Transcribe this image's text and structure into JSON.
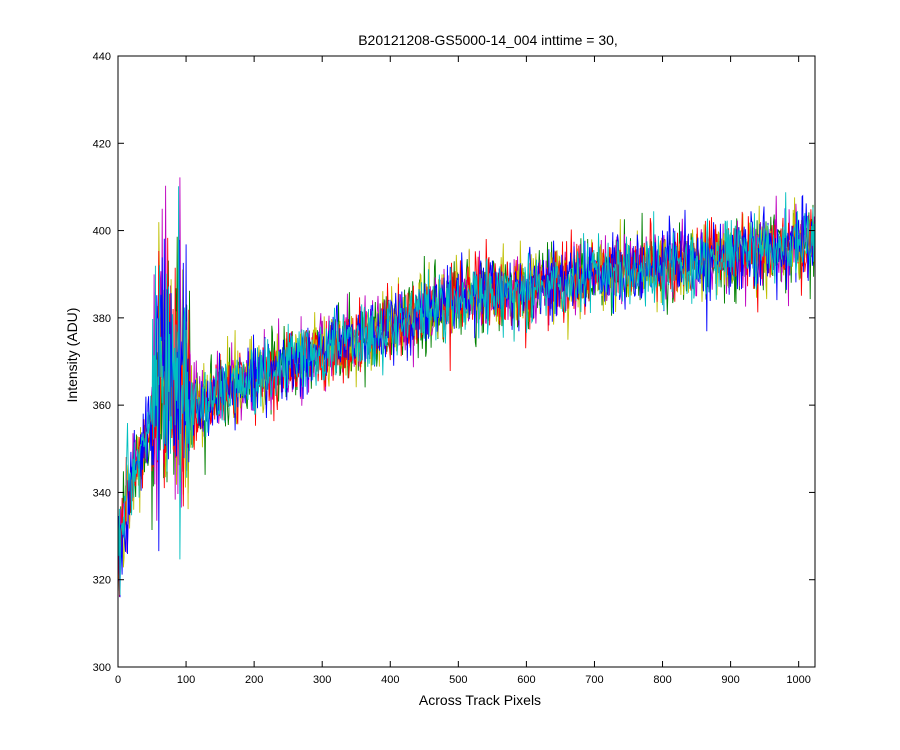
{
  "chart_data": {
    "type": "line",
    "title": "B20121208-GS5000-14_004 inttime = 30,",
    "xlabel": "Across Track Pixels",
    "ylabel": "Intensity (ADU)",
    "xlim": [
      0,
      1024
    ],
    "ylim": [
      300,
      440
    ],
    "xticks": [
      0,
      100,
      200,
      300,
      400,
      500,
      600,
      700,
      800,
      900,
      1000
    ],
    "yticks": [
      300,
      320,
      340,
      360,
      380,
      400,
      420,
      440
    ],
    "grid": false,
    "legend": "none",
    "series_count": 6,
    "series_colors": [
      "#00bfbf",
      "#bf00bf",
      "#bfbf00",
      "#008000",
      "#ff0000",
      "#0000ff"
    ],
    "mean_trend": {
      "x": [
        0,
        10,
        25,
        50,
        80,
        100,
        150,
        200,
        300,
        400,
        500,
        600,
        700,
        800,
        900,
        1000,
        1024
      ],
      "y": [
        325,
        335,
        345,
        355,
        362,
        358,
        362,
        366,
        372,
        378,
        384,
        387,
        390,
        392,
        394,
        397,
        398
      ]
    },
    "noise_amplitude": 12,
    "notable_features": [
      {
        "x_range": [
          50,
          105
        ],
        "y_range": [
          305,
          428
        ],
        "note": "high-variance spike region"
      },
      {
        "x_range": [
          0,
          20
        ],
        "y_range": [
          300,
          356
        ],
        "note": "low-intensity start"
      }
    ]
  }
}
